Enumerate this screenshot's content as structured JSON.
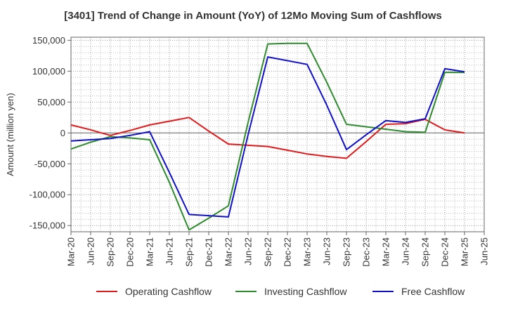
{
  "chart_data": {
    "type": "line",
    "title": "[3401]  Trend of Change in Amount (YoY) of 12Mo Moving Sum of Cashflows",
    "xlabel": "",
    "ylabel": "Amount (million yen)",
    "ylim": [
      -160000,
      155000
    ],
    "yticks": [
      150000,
      100000,
      50000,
      0,
      -50000,
      -100000,
      -150000
    ],
    "ytick_labels": [
      "150,000",
      "100,000",
      "50,000",
      "0",
      "-50,000",
      "-100,000",
      "-150,000"
    ],
    "categories": [
      "Mar-20",
      "Jun-20",
      "Sep-20",
      "Dec-20",
      "Mar-21",
      "Jun-21",
      "Sep-21",
      "Dec-21",
      "Mar-22",
      "Jun-22",
      "Sep-22",
      "Dec-22",
      "Mar-23",
      "Jun-23",
      "Sep-23",
      "Dec-23",
      "Mar-24",
      "Jun-24",
      "Sep-24",
      "Dec-24",
      "Mar-25",
      "Jun-25"
    ],
    "grid": true,
    "legend_position": "bottom",
    "series": [
      {
        "name": "Operating Cashflow",
        "color": "#e31a1c",
        "values": [
          13000,
          5000,
          -4000,
          4000,
          13000,
          19000,
          25000,
          3000,
          -18000,
          -20000,
          -22000,
          -28000,
          -34000,
          -38000,
          -41000,
          -14000,
          14000,
          15000,
          22000,
          5000,
          0,
          null
        ]
      },
      {
        "name": "Investing Cashflow",
        "color": "#2e8b2e",
        "values": [
          -26000,
          -15000,
          -6000,
          -8000,
          -11000,
          -80000,
          -157000,
          -138000,
          -118000,
          17000,
          144000,
          145000,
          145000,
          82000,
          14000,
          10000,
          6000,
          2000,
          1000,
          98000,
          98000,
          null
        ]
      },
      {
        "name": "Free Cashflow",
        "color": "#1010cc",
        "values": [
          -13000,
          -11000,
          -9000,
          -4000,
          2000,
          -64000,
          -132000,
          -134000,
          -136000,
          -3000,
          123000,
          117000,
          111000,
          45000,
          -27000,
          -3000,
          20000,
          17000,
          23000,
          104000,
          99000,
          null
        ]
      }
    ]
  }
}
